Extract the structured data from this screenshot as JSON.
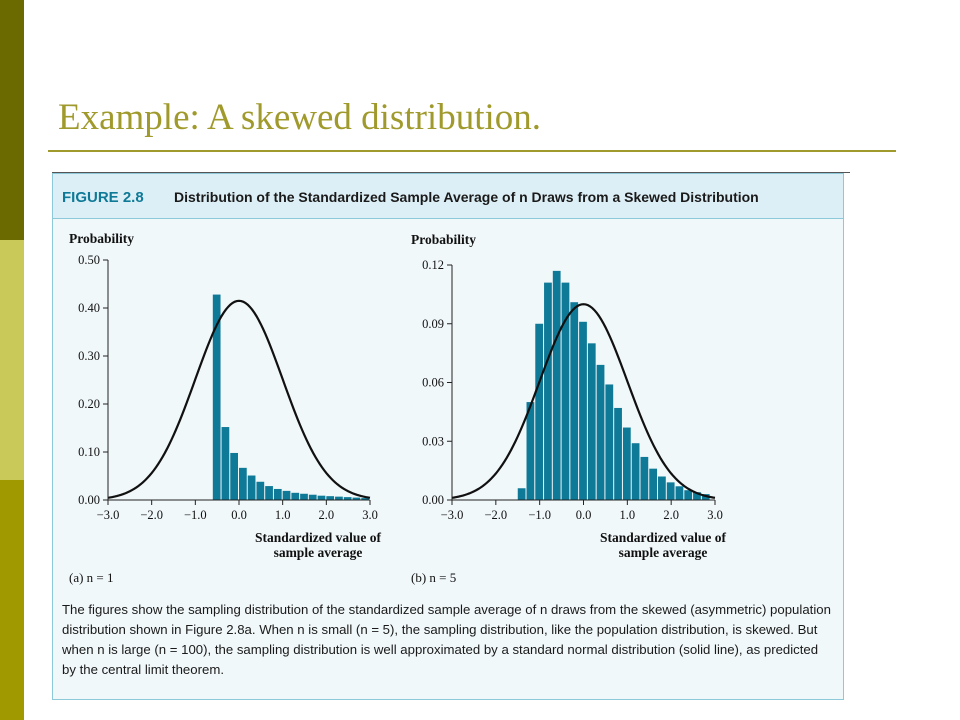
{
  "slide": {
    "title": "Example: A skewed distribution.",
    "accent_color": "#a09a2c",
    "sidebar_colors": [
      "#6b6a00",
      "#c9c95a",
      "#a09a00"
    ]
  },
  "figure": {
    "label": "FIGURE 2.8",
    "caption_title": "Distribution of the Standardized Sample Average of n Draws from a Skewed Distribution",
    "caption_text": "The figures show the sampling distribution of the standardized sample average of n draws from the skewed (asymmetric) population distribution shown in Figure 2.8a. When n is small (n = 5), the sampling distribution, like the population distribution, is skewed. But when n is large (n = 100), the sampling distribution is well approximated by a standard normal distribution (solid line), as predicted by the central limit theorem.",
    "background_color": "#f1f8fa",
    "header_color": "#ddeff6",
    "bar_color": "#0f7a97"
  },
  "chart_data": [
    {
      "type": "bar",
      "panel_label": "(a) n = 1",
      "ylabel": "Probability",
      "xlabel": "Standardized value of sample average",
      "xlim": [
        -3.0,
        3.0
      ],
      "ylim": [
        0.0,
        0.5
      ],
      "xticks": [
        "−3.0",
        "−2.0",
        "−1.0",
        "0.0",
        "1.0",
        "2.0",
        "3.0"
      ],
      "yticks": [
        "0.00",
        "0.10",
        "0.20",
        "0.30",
        "0.40",
        "0.50"
      ],
      "bin_width": 0.2,
      "bins": [
        {
          "x": -0.5,
          "y": 0.428
        },
        {
          "x": -0.3,
          "y": 0.152
        },
        {
          "x": -0.1,
          "y": 0.098
        },
        {
          "x": 0.1,
          "y": 0.067
        },
        {
          "x": 0.3,
          "y": 0.051
        },
        {
          "x": 0.5,
          "y": 0.038
        },
        {
          "x": 0.7,
          "y": 0.029
        },
        {
          "x": 0.9,
          "y": 0.023
        },
        {
          "x": 1.1,
          "y": 0.019
        },
        {
          "x": 1.3,
          "y": 0.015
        },
        {
          "x": 1.5,
          "y": 0.013
        },
        {
          "x": 1.7,
          "y": 0.011
        },
        {
          "x": 1.9,
          "y": 0.009
        },
        {
          "x": 2.1,
          "y": 0.008
        },
        {
          "x": 2.3,
          "y": 0.007
        },
        {
          "x": 2.5,
          "y": 0.006
        },
        {
          "x": 2.7,
          "y": 0.005
        },
        {
          "x": 2.9,
          "y": 0.004
        }
      ],
      "normal_curve_peak": 0.415
    },
    {
      "type": "bar",
      "panel_label": "(b) n = 5",
      "ylabel": "Probability",
      "xlabel": "Standardized value of sample average",
      "xlim": [
        -3.0,
        3.0
      ],
      "ylim": [
        0.0,
        0.12
      ],
      "xticks": [
        "−3.0",
        "−2.0",
        "−1.0",
        "0.0",
        "1.0",
        "2.0",
        "3.0"
      ],
      "yticks": [
        "0.00",
        "0.03",
        "0.06",
        "0.09",
        "0.12"
      ],
      "bin_width": 0.2,
      "bins": [
        {
          "x": -1.4,
          "y": 0.006
        },
        {
          "x": -1.2,
          "y": 0.05
        },
        {
          "x": -1.0,
          "y": 0.09
        },
        {
          "x": -0.8,
          "y": 0.111
        },
        {
          "x": -0.6,
          "y": 0.117
        },
        {
          "x": -0.4,
          "y": 0.111
        },
        {
          "x": -0.2,
          "y": 0.101
        },
        {
          "x": 0.0,
          "y": 0.091
        },
        {
          "x": 0.2,
          "y": 0.08
        },
        {
          "x": 0.4,
          "y": 0.069
        },
        {
          "x": 0.6,
          "y": 0.059
        },
        {
          "x": 0.8,
          "y": 0.047
        },
        {
          "x": 1.0,
          "y": 0.037
        },
        {
          "x": 1.2,
          "y": 0.029
        },
        {
          "x": 1.4,
          "y": 0.022
        },
        {
          "x": 1.6,
          "y": 0.016
        },
        {
          "x": 1.8,
          "y": 0.012
        },
        {
          "x": 2.0,
          "y": 0.009
        },
        {
          "x": 2.2,
          "y": 0.007
        },
        {
          "x": 2.4,
          "y": 0.005
        },
        {
          "x": 2.6,
          "y": 0.004
        },
        {
          "x": 2.8,
          "y": 0.003
        }
      ],
      "normal_curve_peak": 0.1
    }
  ]
}
